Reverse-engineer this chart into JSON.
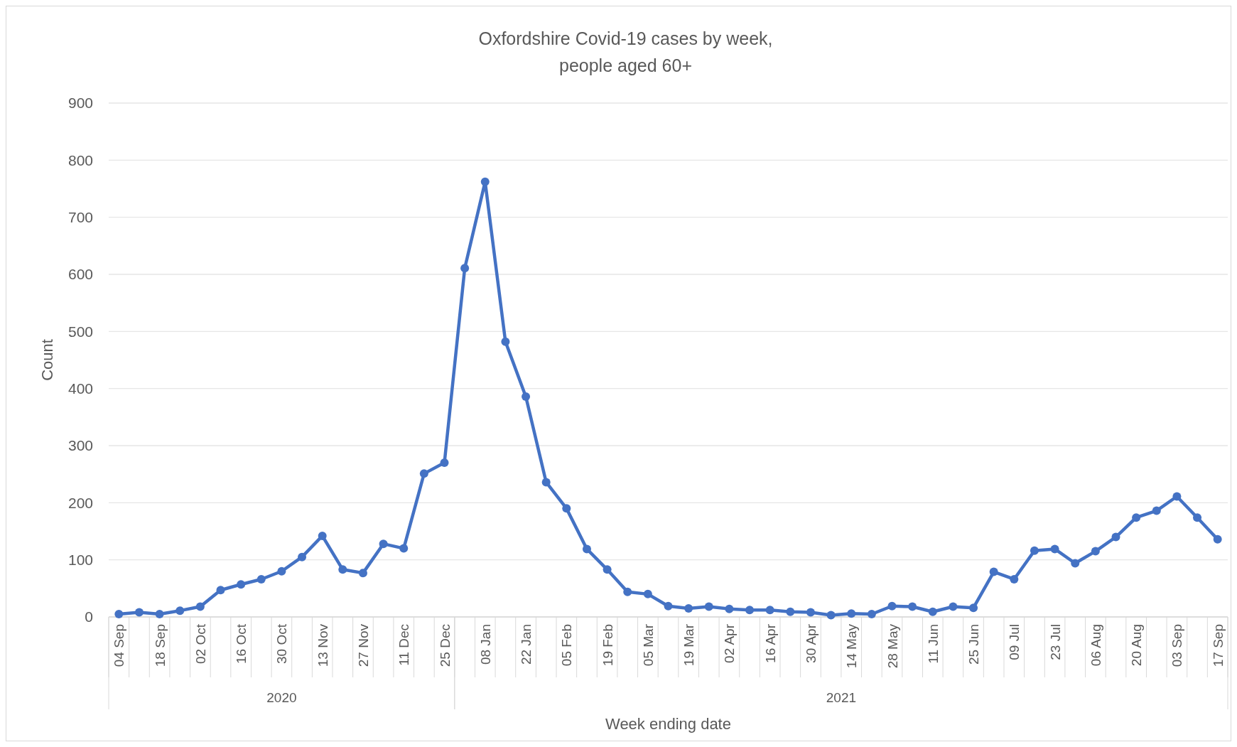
{
  "chart_data": {
    "type": "line",
    "title": "Oxfordshire Covid-19 cases by week,\npeople aged 60+",
    "xlabel": "Week ending date",
    "ylabel": "Count",
    "x": [
      "2020-09-04",
      "2020-09-11",
      "2020-09-18",
      "2020-09-25",
      "2020-10-02",
      "2020-10-09",
      "2020-10-16",
      "2020-10-23",
      "2020-10-30",
      "2020-11-06",
      "2020-11-13",
      "2020-11-20",
      "2020-11-27",
      "2020-12-04",
      "2020-12-11",
      "2020-12-18",
      "2020-12-25",
      "2021-01-01",
      "2021-01-08",
      "2021-01-15",
      "2021-01-22",
      "2021-01-29",
      "2021-02-05",
      "2021-02-12",
      "2021-02-19",
      "2021-02-26",
      "2021-03-05",
      "2021-03-12",
      "2021-03-19",
      "2021-03-26",
      "2021-04-02",
      "2021-04-09",
      "2021-04-16",
      "2021-04-23",
      "2021-04-30",
      "2021-05-07",
      "2021-05-14",
      "2021-05-21",
      "2021-05-28",
      "2021-06-04",
      "2021-06-11",
      "2021-06-18",
      "2021-06-25",
      "2021-07-02",
      "2021-07-09",
      "2021-07-16",
      "2021-07-23",
      "2021-07-30",
      "2021-08-06",
      "2021-08-13",
      "2021-08-20",
      "2021-08-27",
      "2021-09-03",
      "2021-09-10",
      "2021-09-17"
    ],
    "xlim": [
      "2020-08-31T12:00",
      "2021-09-20T12:00"
    ],
    "xticks": [
      {
        "value": "2020-09-04",
        "label": "04 Sep"
      },
      {
        "value": "2020-09-18",
        "label": "18 Sep"
      },
      {
        "value": "2020-10-02",
        "label": "02 Oct"
      },
      {
        "value": "2020-10-16",
        "label": "16 Oct"
      },
      {
        "value": "2020-10-30",
        "label": "30 Oct"
      },
      {
        "value": "2020-11-13",
        "label": "13 Nov"
      },
      {
        "value": "2020-11-27",
        "label": "27 Nov"
      },
      {
        "value": "2020-12-11",
        "label": "11 Dec"
      },
      {
        "value": "2020-12-25",
        "label": "25 Dec"
      },
      {
        "value": "2021-01-08",
        "label": "08 Jan"
      },
      {
        "value": "2021-01-22",
        "label": "22 Jan"
      },
      {
        "value": "2021-02-05",
        "label": "05 Feb"
      },
      {
        "value": "2021-02-19",
        "label": "19 Feb"
      },
      {
        "value": "2021-03-05",
        "label": "05 Mar"
      },
      {
        "value": "2021-03-19",
        "label": "19 Mar"
      },
      {
        "value": "2021-04-02",
        "label": "02 Apr"
      },
      {
        "value": "2021-04-16",
        "label": "16 Apr"
      },
      {
        "value": "2021-04-30",
        "label": "30 Apr"
      },
      {
        "value": "2021-05-14",
        "label": "14 May"
      },
      {
        "value": "2021-05-28",
        "label": "28 May"
      },
      {
        "value": "2021-06-11",
        "label": "11 Jun"
      },
      {
        "value": "2021-06-25",
        "label": "25 Jun"
      },
      {
        "value": "2021-07-09",
        "label": "09 Jul"
      },
      {
        "value": "2021-07-23",
        "label": "23 Jul"
      },
      {
        "value": "2021-08-06",
        "label": "06 Aug"
      },
      {
        "value": "2021-08-20",
        "label": "20 Aug"
      },
      {
        "value": "2021-09-03",
        "label": "03 Sep"
      },
      {
        "value": "2021-09-17",
        "label": "17 Sep"
      }
    ],
    "series": [
      {
        "color": "#4472c4",
        "values": [
          5,
          8,
          5,
          11,
          18,
          47,
          57,
          66,
          80,
          105,
          142,
          83,
          77,
          128,
          120,
          251,
          270,
          611,
          762,
          482,
          386,
          236,
          190,
          119,
          83,
          44,
          40,
          19,
          15,
          18,
          14,
          12,
          12,
          9,
          8,
          3,
          6,
          5,
          19,
          18,
          9,
          18,
          16,
          79,
          66,
          116,
          119,
          94,
          115,
          140,
          174,
          186,
          211,
          174,
          136
        ]
      }
    ],
    "ylim": [
      0,
      900
    ],
    "yticks": [
      0,
      100,
      200,
      300,
      400,
      500,
      600,
      700,
      800,
      900
    ],
    "grid": "y",
    "marker": "circle",
    "line_style": "solid",
    "annotations": [
      "2020",
      "2021"
    ]
  }
}
